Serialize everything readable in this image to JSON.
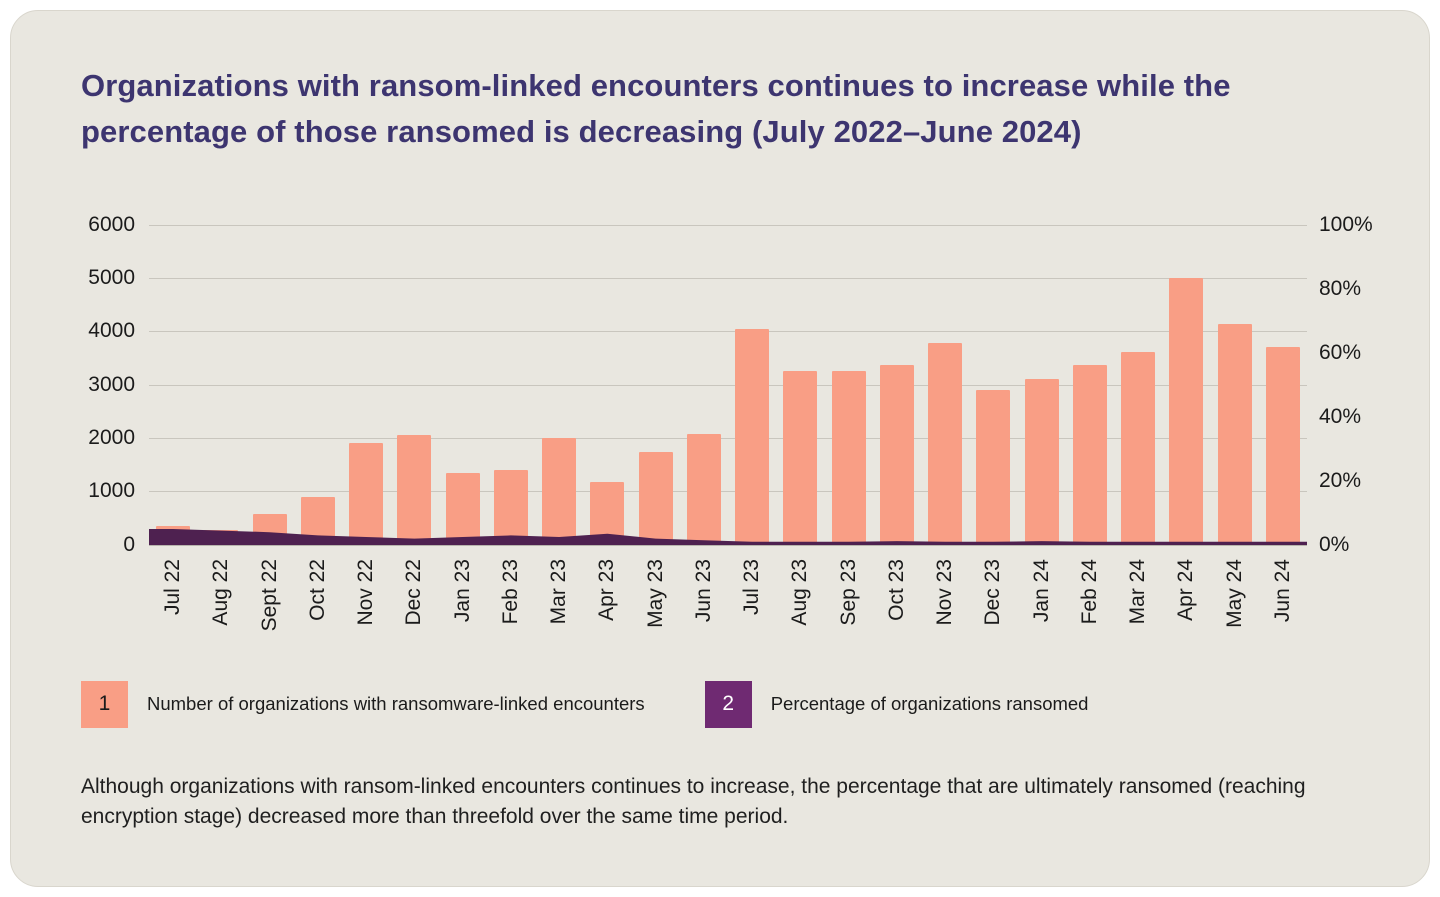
{
  "title": "Organizations with ransom-linked encounters continues to increase while the percentage of those ransomed is decreasing (July 2022–June 2024)",
  "footnote": "Although organizations with ransom-linked encounters continues to increase, the percentage that are ultimately ransomed (reaching encryption stage) decreased more than threefold over the same time period.",
  "colors": {
    "panel_bg": "#e9e7e0",
    "title": "#3d3570",
    "bar": "#f99e85",
    "area": "#4e2150",
    "legend_badge_2": "#6f2a72",
    "gridline": "#c9c6be",
    "tick_text": "#1b1b1b"
  },
  "legend": {
    "items": [
      {
        "marker": "1",
        "label": "Number of organizations with ransomware-linked encounters",
        "color": "#f99e85",
        "text_color": "#1b1b1b"
      },
      {
        "marker": "2",
        "label": "Percentage of organizations ransomed",
        "color": "#6f2a72",
        "text_color": "#ffffff"
      }
    ]
  },
  "chart_data": {
    "type": "bar",
    "title": "Organizations with ransom-linked encounters continues to increase while the percentage of those ransomed is decreasing (July 2022–June 2024)",
    "categories": [
      "Jul 22",
      "Aug 22",
      "Sept 22",
      "Oct 22",
      "Nov 22",
      "Dec 22",
      "Jan 23",
      "Feb 23",
      "Mar 23",
      "Apr 23",
      "May 23",
      "Jun 23",
      "Jul 23",
      "Aug 23",
      "Sep 23",
      "Oct 23",
      "Nov 23",
      "Dec 23",
      "Jan 24",
      "Feb 24",
      "Mar 24",
      "Apr 24",
      "May 24",
      "Jun 24"
    ],
    "series": [
      {
        "name": "Number of organizations with ransomware-linked encounters",
        "render": "bar",
        "axis": "left",
        "color": "#f99e85",
        "values": [
          350,
          280,
          580,
          900,
          1900,
          2050,
          1350,
          1400,
          2000,
          1180,
          1730,
          2070,
          4050,
          3250,
          3260,
          3370,
          3780,
          2900,
          3100,
          3370,
          3620,
          5000,
          4130,
          3700
        ]
      },
      {
        "name": "Percentage of organizations ransomed",
        "render": "area",
        "axis": "right",
        "color": "#4e2150",
        "values": [
          5,
          4.5,
          4,
          3,
          2.5,
          2,
          2.5,
          3,
          2.5,
          3.5,
          2,
          1.5,
          1,
          1,
          1,
          1.2,
          1,
          1,
          1.2,
          1,
          1,
          1,
          1,
          1
        ]
      }
    ],
    "left_axis": {
      "min": 0,
      "max": 6000,
      "tick_values": [
        6000,
        5000,
        4000,
        3000,
        2000,
        1000,
        0
      ],
      "tick_labels": [
        "6000",
        "5000",
        "4000",
        "3000",
        "2000",
        "1000",
        "0"
      ]
    },
    "right_axis": {
      "min": 0,
      "max": 100,
      "tick_values": [
        100,
        80,
        60,
        40,
        20,
        0
      ],
      "tick_labels": [
        "100%",
        "80%",
        "60%",
        "40%",
        "20%",
        "0%"
      ]
    },
    "grid": true,
    "legend_position": "bottom"
  }
}
